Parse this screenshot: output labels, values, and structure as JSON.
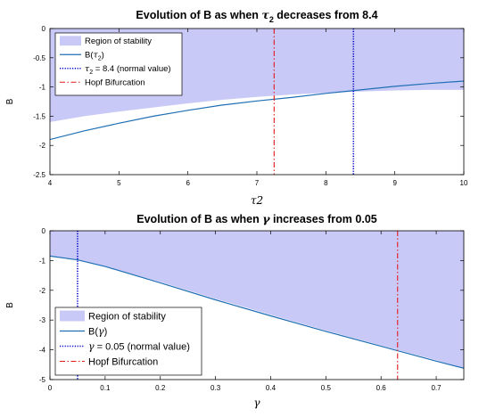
{
  "chart_data": [
    {
      "type": "line",
      "title": "Evolution of B as when τ2 decreases from 8.4",
      "title_parts": [
        "Evolution of B as when ",
        "τ",
        "2",
        " decreases from 8.4"
      ],
      "xlabel": "τ2",
      "xlabel_parts": [
        "τ",
        "2"
      ],
      "ylabel": "B",
      "xlim": [
        4,
        10
      ],
      "ylim": [
        -2.5,
        0
      ],
      "x_ticks": [
        4,
        5,
        6,
        7,
        8,
        9,
        10
      ],
      "y_ticks": [
        0,
        -0.5,
        -1,
        -1.5,
        -2,
        -2.5
      ],
      "x_tick_labels": [
        "4",
        "5",
        "6",
        "7",
        "8",
        "9",
        "10"
      ],
      "y_tick_labels": [
        "0",
        "-0.5",
        "-1",
        "-1.5",
        "-2",
        "-2.5"
      ],
      "grid": false,
      "legend_placement": "top-left",
      "legend": [
        {
          "label": "Region of stability",
          "parts": [
            "Region of stability"
          ]
        },
        {
          "label": "B(τ2)",
          "parts": [
            "B(",
            "τ",
            "2",
            ")"
          ]
        },
        {
          "label": "τ2 = 8.4 (normal value)",
          "parts": [
            "",
            "τ",
            "2",
            " = 8.4 (normal value)"
          ]
        },
        {
          "label": "Hopf Bifurcation",
          "parts": [
            "Hopf Bifurcation"
          ]
        }
      ],
      "stability_region": {
        "x": [
          4,
          4.5,
          5,
          5.5,
          6,
          6.5,
          7,
          7.5,
          8,
          8.5,
          9,
          9.5,
          10
        ],
        "upper": [
          0,
          0,
          0,
          0,
          0,
          0,
          0,
          0,
          0,
          0,
          0,
          0,
          0
        ],
        "lower": [
          -1.6,
          -1.5,
          -1.42,
          -1.35,
          -1.28,
          -1.22,
          -1.17,
          -1.13,
          -1.1,
          -1.08,
          -1.06,
          -1.05,
          -1.05
        ]
      },
      "series": [
        {
          "name": "B(τ2)",
          "x": [
            4,
            4.5,
            5,
            5.5,
            6,
            6.5,
            7,
            7.5,
            8,
            8.5,
            9,
            9.5,
            10
          ],
          "y": [
            -1.9,
            -1.75,
            -1.62,
            -1.5,
            -1.4,
            -1.31,
            -1.24,
            -1.18,
            -1.11,
            -1.05,
            -0.99,
            -0.94,
            -0.9
          ]
        }
      ],
      "vlines": [
        {
          "name": "τ2 = 8.4 (normal value)",
          "x": 8.4,
          "style": "dotted",
          "color": "#0000cc"
        },
        {
          "name": "Hopf Bifurcation",
          "x": 7.25,
          "style": "dashdot",
          "color": "#e41a1c"
        }
      ]
    },
    {
      "type": "line",
      "title": "Evolution of B as when γ increases from 0.05",
      "title_parts": [
        "Evolution of B as when ",
        "γ",
        "",
        " increases from 0.05"
      ],
      "xlabel": "γ",
      "xlabel_parts": [
        "γ",
        ""
      ],
      "ylabel": "B",
      "xlim": [
        0,
        0.75
      ],
      "ylim": [
        -5,
        0
      ],
      "x_ticks": [
        0,
        0.1,
        0.2,
        0.3,
        0.4,
        0.5,
        0.6,
        0.7
      ],
      "y_ticks": [
        0,
        -1,
        -2,
        -3,
        -4,
        -5
      ],
      "x_tick_labels": [
        "0",
        "0.1",
        "0.2",
        "0.3",
        "0.4",
        "0.5",
        "0.6",
        "0.7"
      ],
      "y_tick_labels": [
        "0",
        "-1",
        "-2",
        "-3",
        "-4",
        "-5"
      ],
      "grid": false,
      "legend_placement": "bottom-left",
      "legend": [
        {
          "label": "Region of stability",
          "parts": [
            "Region of stability"
          ]
        },
        {
          "label": "B(γ)",
          "parts": [
            "B(",
            "γ",
            "",
            ")"
          ]
        },
        {
          "label": "γ = 0.05 (normal value)",
          "parts": [
            "",
            "γ",
            "",
            " = 0.05 (normal value)"
          ]
        },
        {
          "label": "Hopf Bifurcation",
          "parts": [
            "Hopf Bifurcation"
          ]
        }
      ],
      "stability_region": {
        "x": [
          0,
          0.05,
          0.1,
          0.2,
          0.3,
          0.4,
          0.5,
          0.6,
          0.7,
          0.75
        ],
        "upper": [
          0,
          0,
          0,
          0,
          0,
          0,
          0,
          0,
          0,
          0
        ],
        "lower": [
          -0.85,
          -0.98,
          -1.2,
          -1.72,
          -2.28,
          -2.82,
          -3.35,
          -3.85,
          -4.35,
          -4.62
        ]
      },
      "series": [
        {
          "name": "B(γ)",
          "x": [
            0,
            0.05,
            0.1,
            0.2,
            0.3,
            0.4,
            0.5,
            0.6,
            0.7,
            0.75
          ],
          "y": [
            -0.85,
            -0.98,
            -1.2,
            -1.75,
            -2.32,
            -2.86,
            -3.38,
            -3.88,
            -4.38,
            -4.62
          ]
        }
      ],
      "vlines": [
        {
          "name": "γ = 0.05 (normal value)",
          "x": 0.05,
          "style": "dotted",
          "color": "#0000cc"
        },
        {
          "name": "Hopf Bifurcation",
          "x": 0.63,
          "style": "dashdot",
          "color": "#e41a1c"
        }
      ]
    }
  ],
  "colors": {
    "region": "#c9c9f7",
    "curve": "#1f6fb4",
    "normal_line": "#0000cc",
    "hopf_line": "#e41a1c",
    "axes": "#000000"
  }
}
